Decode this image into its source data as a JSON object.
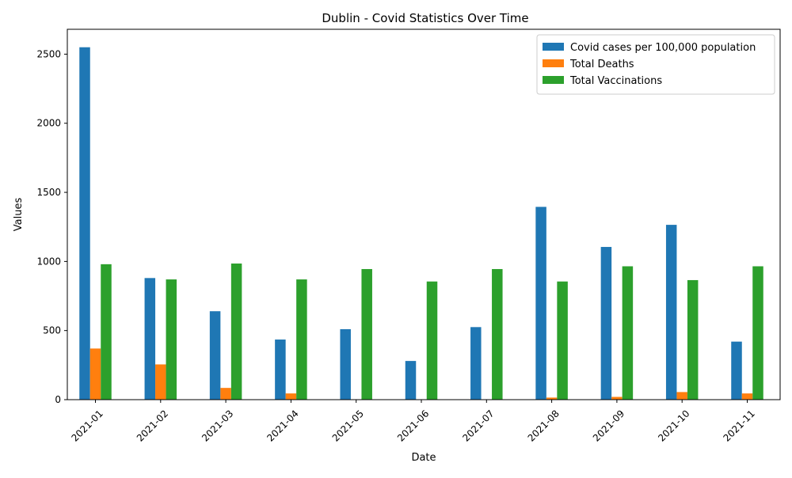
{
  "chart_data": {
    "type": "bar",
    "title": "Dublin - Covid Statistics Over Time",
    "xlabel": "Date",
    "ylabel": "Values",
    "categories": [
      "2021-01",
      "2021-02",
      "2021-03",
      "2021-04",
      "2021-05",
      "2021-06",
      "2021-07",
      "2021-08",
      "2021-09",
      "2021-10",
      "2021-11"
    ],
    "ylim": [
      0,
      2680
    ],
    "yticks": [
      0,
      500,
      1000,
      1500,
      2000,
      2500
    ],
    "grid": false,
    "legend_position": "top-right",
    "series": [
      {
        "name": "Covid cases per 100,000 population",
        "color": "#1f77b4",
        "values": [
          2550,
          880,
          640,
          435,
          510,
          280,
          525,
          1395,
          1105,
          1265,
          420
        ]
      },
      {
        "name": "Total Deaths",
        "color": "#ff7f0e",
        "values": [
          370,
          255,
          85,
          45,
          0,
          0,
          0,
          15,
          20,
          55,
          45
        ]
      },
      {
        "name": "Total Vaccinations",
        "color": "#2ca02c",
        "values": [
          980,
          870,
          985,
          870,
          945,
          855,
          945,
          855,
          965,
          865,
          965
        ]
      }
    ]
  }
}
